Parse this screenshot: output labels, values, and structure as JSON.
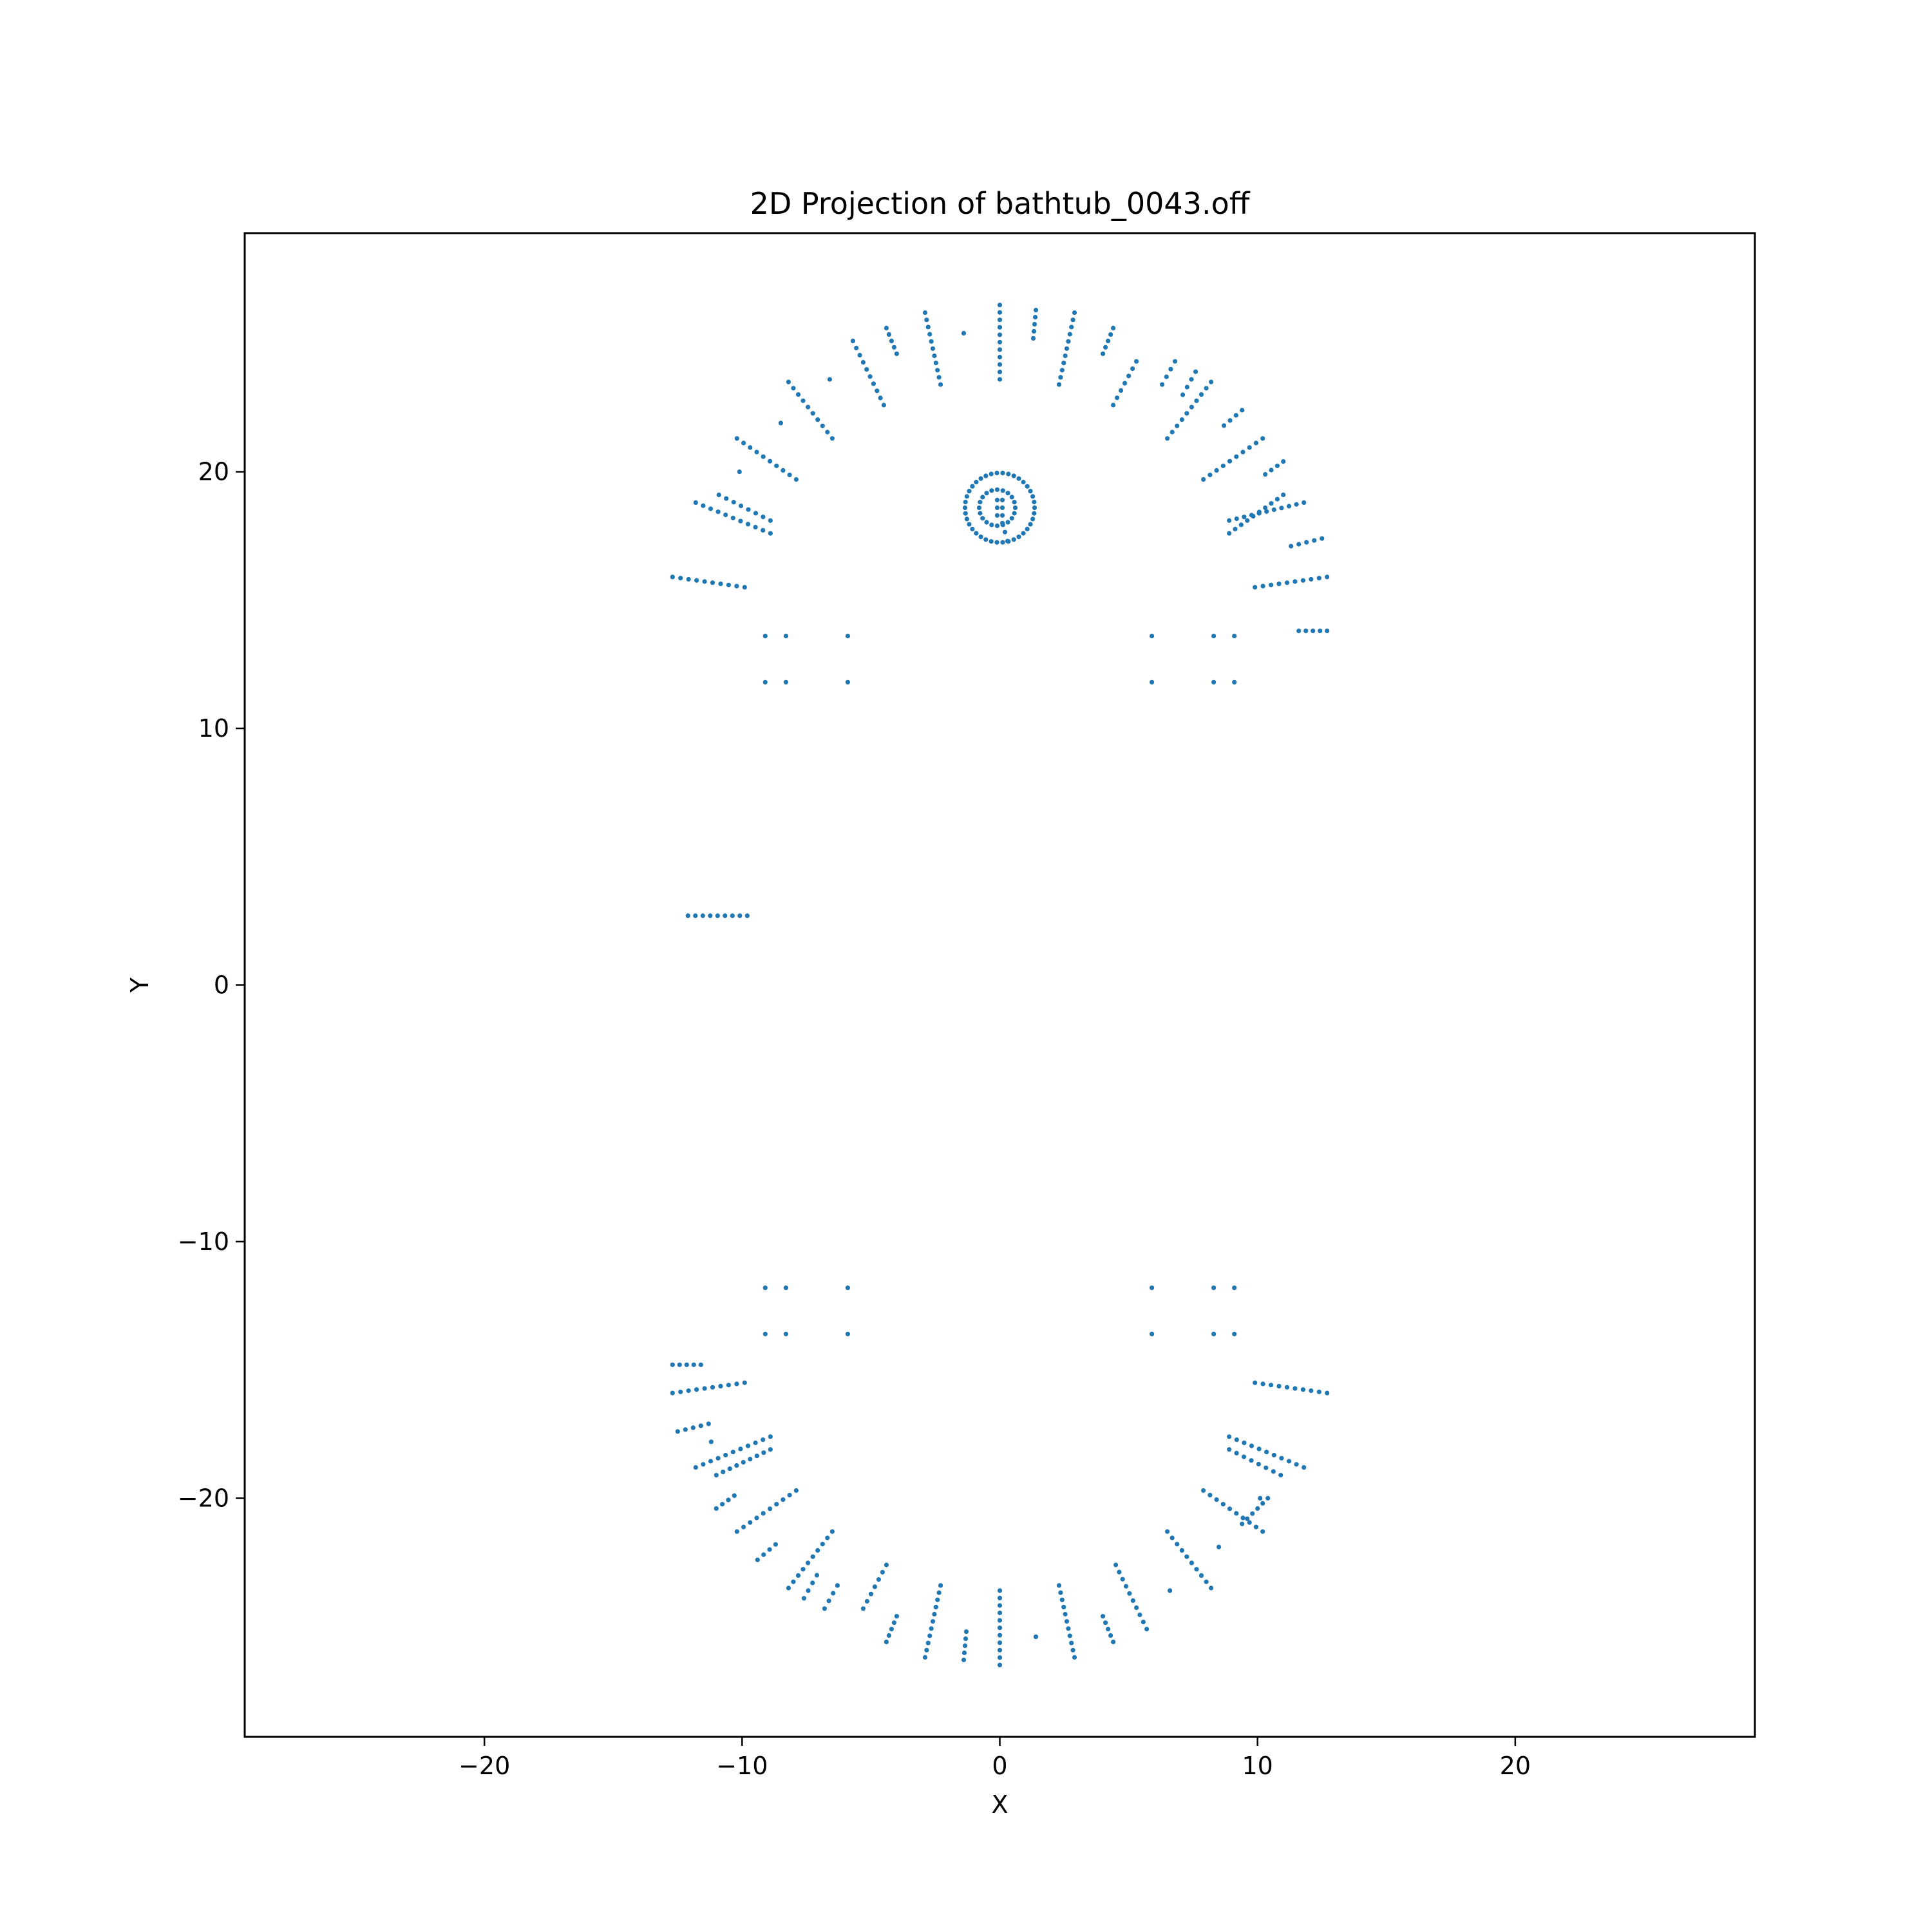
{
  "chart_data": {
    "type": "scatter",
    "title": "2D Projection of bathtub_0043.off",
    "xlabel": "X",
    "ylabel": "Y",
    "xlim": [
      -29.3,
      29.3
    ],
    "ylim": [
      -29.3,
      29.3
    ],
    "xticks": [
      -20,
      -10,
      0,
      10,
      20
    ],
    "yticks": [
      -20,
      -10,
      0,
      10,
      20
    ],
    "xtick_labels": [
      "−20",
      "−10",
      "0",
      "10",
      "20"
    ],
    "ytick_labels": [
      "−20",
      "−10",
      "0",
      "10",
      "20"
    ],
    "grid": false,
    "marker_color": "#1f77b4",
    "segments": [
      {
        "from": [
          -12.7,
          15.9
        ],
        "to": [
          -9.9,
          15.5
        ]
      },
      {
        "from": [
          -11.8,
          18.8
        ],
        "to": [
          -8.9,
          17.6
        ]
      },
      {
        "from": [
          -10.9,
          19.1
        ],
        "to": [
          -8.9,
          18.1
        ]
      },
      {
        "from": [
          -10.2,
          21.3
        ],
        "to": [
          -7.9,
          19.7
        ]
      },
      {
        "from": [
          -8.2,
          23.5
        ],
        "to": [
          -6.5,
          21.3
        ]
      },
      {
        "from": [
          -5.7,
          25.1
        ],
        "to": [
          -4.5,
          22.6
        ]
      },
      {
        "from": [
          -4.4,
          25.6
        ],
        "to": [
          -4.0,
          24.6
        ]
      },
      {
        "from": [
          -2.9,
          26.2
        ],
        "to": [
          -2.3,
          23.4
        ]
      },
      {
        "from": [
          0.0,
          26.5
        ],
        "to": [
          0.0,
          23.6
        ]
      },
      {
        "from": [
          1.4,
          26.3
        ],
        "to": [
          1.3,
          25.2
        ]
      },
      {
        "from": [
          2.9,
          26.2
        ],
        "to": [
          2.3,
          23.4
        ]
      },
      {
        "from": [
          4.4,
          25.6
        ],
        "to": [
          4.0,
          24.6
        ]
      },
      {
        "from": [
          5.3,
          24.3
        ],
        "to": [
          4.4,
          22.6
        ]
      },
      {
        "from": [
          6.8,
          24.3
        ],
        "to": [
          6.3,
          23.4
        ]
      },
      {
        "from": [
          7.6,
          23.9
        ],
        "to": [
          7.1,
          23.0
        ]
      },
      {
        "from": [
          8.2,
          23.5
        ],
        "to": [
          6.5,
          21.3
        ]
      },
      {
        "from": [
          9.4,
          22.4
        ],
        "to": [
          8.7,
          21.8
        ]
      },
      {
        "from": [
          10.2,
          21.3
        ],
        "to": [
          7.9,
          19.7
        ]
      },
      {
        "from": [
          11.0,
          20.4
        ],
        "to": [
          10.3,
          19.9
        ]
      },
      {
        "from": [
          11.0,
          19.1
        ],
        "to": [
          8.9,
          17.6
        ]
      },
      {
        "from": [
          11.8,
          18.8
        ],
        "to": [
          8.9,
          18.1
        ]
      },
      {
        "from": [
          12.5,
          17.4
        ],
        "to": [
          11.3,
          17.1
        ]
      },
      {
        "from": [
          12.7,
          15.9
        ],
        "to": [
          9.9,
          15.5
        ]
      },
      {
        "from": [
          12.7,
          13.8
        ],
        "to": [
          11.6,
          13.8
        ]
      },
      {
        "from": [
          -12.1,
          2.7
        ],
        "to": [
          -9.8,
          2.7
        ]
      },
      {
        "from": [
          -12.7,
          -14.8
        ],
        "to": [
          -11.6,
          -14.8
        ]
      },
      {
        "from": [
          -12.7,
          -15.9
        ],
        "to": [
          -9.9,
          -15.5
        ]
      },
      {
        "from": [
          -12.5,
          -17.4
        ],
        "to": [
          -11.3,
          -17.1
        ]
      },
      {
        "from": [
          -11.8,
          -18.8
        ],
        "to": [
          -8.9,
          -17.6
        ]
      },
      {
        "from": [
          -11.0,
          -19.1
        ],
        "to": [
          -8.9,
          -18.1
        ]
      },
      {
        "from": [
          -11.0,
          -20.4
        ],
        "to": [
          -10.3,
          -19.9
        ]
      },
      {
        "from": [
          -10.2,
          -21.3
        ],
        "to": [
          -7.9,
          -19.7
        ]
      },
      {
        "from": [
          -9.4,
          -22.4
        ],
        "to": [
          -8.7,
          -21.8
        ]
      },
      {
        "from": [
          -8.2,
          -23.5
        ],
        "to": [
          -6.5,
          -21.3
        ]
      },
      {
        "from": [
          -7.6,
          -23.9
        ],
        "to": [
          -7.1,
          -23.0
        ]
      },
      {
        "from": [
          -6.8,
          -24.3
        ],
        "to": [
          -6.3,
          -23.4
        ]
      },
      {
        "from": [
          -5.3,
          -24.3
        ],
        "to": [
          -4.4,
          -22.6
        ]
      },
      {
        "from": [
          -4.4,
          -25.6
        ],
        "to": [
          -4.0,
          -24.6
        ]
      },
      {
        "from": [
          -2.9,
          -26.2
        ],
        "to": [
          -2.3,
          -23.4
        ]
      },
      {
        "from": [
          -1.4,
          -26.3
        ],
        "to": [
          -1.3,
          -25.2
        ]
      },
      {
        "from": [
          0.0,
          -26.5
        ],
        "to": [
          0.0,
          -23.6
        ]
      },
      {
        "from": [
          2.9,
          -26.2
        ],
        "to": [
          2.3,
          -23.4
        ]
      },
      {
        "from": [
          4.4,
          -25.6
        ],
        "to": [
          4.0,
          -24.6
        ]
      },
      {
        "from": [
          5.7,
          -25.1
        ],
        "to": [
          4.5,
          -22.6
        ]
      },
      {
        "from": [
          8.2,
          -23.5
        ],
        "to": [
          6.5,
          -21.3
        ]
      },
      {
        "from": [
          10.2,
          -21.3
        ],
        "to": [
          7.9,
          -19.7
        ]
      },
      {
        "from": [
          10.4,
          -20.0
        ],
        "to": [
          9.4,
          -21.0
        ]
      },
      {
        "from": [
          10.9,
          -19.1
        ],
        "to": [
          8.9,
          -18.1
        ]
      },
      {
        "from": [
          11.8,
          -18.8
        ],
        "to": [
          8.9,
          -17.6
        ]
      },
      {
        "from": [
          12.7,
          -15.9
        ],
        "to": [
          9.9,
          -15.5
        ]
      }
    ],
    "points": [
      [
        -1.4,
        25.4
      ],
      [
        -6.6,
        23.6
      ],
      [
        -8.5,
        21.9
      ],
      [
        -10.1,
        20.0
      ],
      [
        -9.1,
        13.6
      ],
      [
        -8.3,
        13.6
      ],
      [
        -5.9,
        13.6
      ],
      [
        5.9,
        13.6
      ],
      [
        8.3,
        13.6
      ],
      [
        9.1,
        13.6
      ],
      [
        -9.1,
        11.8
      ],
      [
        -8.3,
        11.8
      ],
      [
        -5.9,
        11.8
      ],
      [
        5.9,
        11.8
      ],
      [
        8.3,
        11.8
      ],
      [
        9.1,
        11.8
      ],
      [
        -9.1,
        -11.8
      ],
      [
        -8.3,
        -11.8
      ],
      [
        -5.9,
        -11.8
      ],
      [
        5.9,
        -11.8
      ],
      [
        8.3,
        -11.8
      ],
      [
        9.1,
        -11.8
      ],
      [
        -9.1,
        -13.6
      ],
      [
        -8.3,
        -13.6
      ],
      [
        -5.9,
        -13.6
      ],
      [
        5.9,
        -13.6
      ],
      [
        8.3,
        -13.6
      ],
      [
        9.1,
        -13.6
      ],
      [
        1.4,
        -25.4
      ],
      [
        6.6,
        -23.6
      ],
      [
        8.5,
        -21.9
      ],
      [
        10.1,
        -20.0
      ],
      [
        -11.2,
        -17.8
      ]
    ],
    "rings": [
      {
        "center": [
          0.0,
          18.6
        ],
        "radius": 1.35
      },
      {
        "center": [
          -0.1,
          18.6
        ],
        "radius": 0.7
      }
    ],
    "stem": {
      "from": [
        0.1,
        18.0
      ],
      "to": [
        0.3,
        17.3
      ]
    },
    "marks": [
      {
        "from": [
          -0.1,
          18.9
        ],
        "to": [
          -0.1,
          18.3
        ]
      },
      {
        "from": [
          0.1,
          18.9
        ],
        "to": [
          0.1,
          18.3
        ]
      }
    ]
  }
}
